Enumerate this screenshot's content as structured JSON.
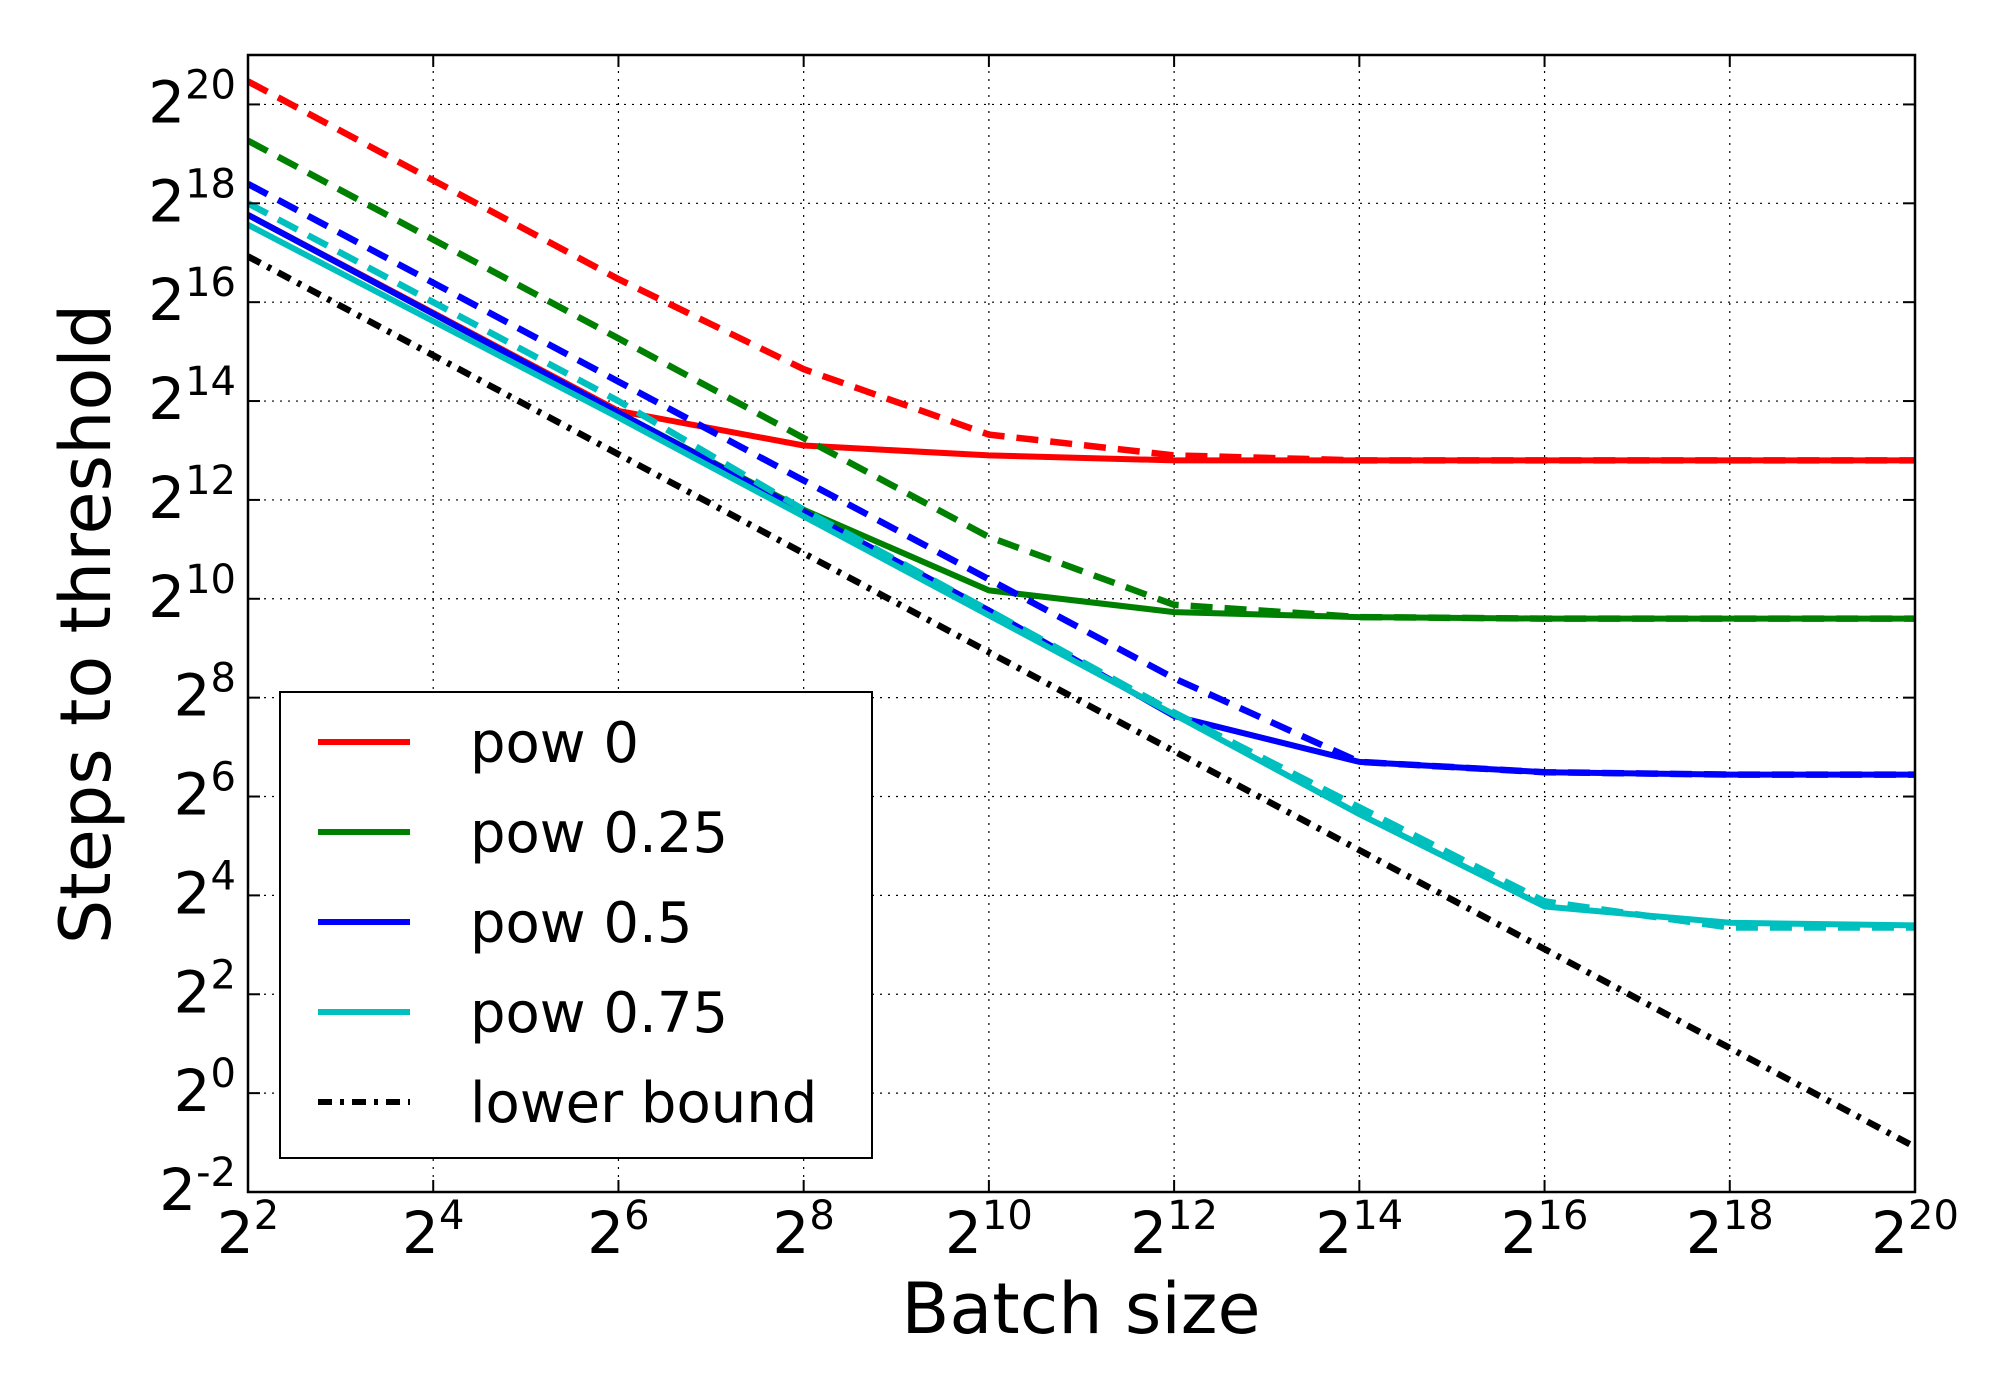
{
  "chart_data": {
    "type": "line",
    "xlabel": "Batch size",
    "ylabel": "Steps to threshold",
    "x_scale": "log2",
    "y_scale": "log2",
    "xlim": [
      4,
      1048576
    ],
    "ylim": [
      0.25,
      2097152
    ],
    "x_ticks": [
      {
        "base": "2",
        "exp": "2",
        "value": 4
      },
      {
        "base": "2",
        "exp": "4",
        "value": 16
      },
      {
        "base": "2",
        "exp": "6",
        "value": 64
      },
      {
        "base": "2",
        "exp": "8",
        "value": 256
      },
      {
        "base": "2",
        "exp": "10",
        "value": 1024
      },
      {
        "base": "2",
        "exp": "12",
        "value": 4096
      },
      {
        "base": "2",
        "exp": "14",
        "value": 16384
      },
      {
        "base": "2",
        "exp": "16",
        "value": 65536
      },
      {
        "base": "2",
        "exp": "18",
        "value": 262144
      },
      {
        "base": "2",
        "exp": "20",
        "value": 1048576
      }
    ],
    "y_ticks": [
      {
        "base": "2",
        "exp": "-2",
        "value": 0.25
      },
      {
        "base": "2",
        "exp": "0",
        "value": 1
      },
      {
        "base": "2",
        "exp": "2",
        "value": 4
      },
      {
        "base": "2",
        "exp": "4",
        "value": 16
      },
      {
        "base": "2",
        "exp": "6",
        "value": 64
      },
      {
        "base": "2",
        "exp": "8",
        "value": 256
      },
      {
        "base": "2",
        "exp": "10",
        "value": 1024
      },
      {
        "base": "2",
        "exp": "12",
        "value": 4096
      },
      {
        "base": "2",
        "exp": "14",
        "value": 16384
      },
      {
        "base": "2",
        "exp": "16",
        "value": 65536
      },
      {
        "base": "2",
        "exp": "18",
        "value": 262144
      },
      {
        "base": "2",
        "exp": "20",
        "value": 1048576
      }
    ],
    "grid": true,
    "legend_position": "bottom-left",
    "legend": [
      {
        "label": "pow 0",
        "color": "#ff0000",
        "style": "solid"
      },
      {
        "label": "pow 0.25",
        "color": "#008000",
        "style": "solid"
      },
      {
        "label": "pow 0.5",
        "color": "#0000ff",
        "style": "solid"
      },
      {
        "label": "pow 0.75",
        "color": "#00bfbf",
        "style": "solid"
      },
      {
        "label": "lower bound",
        "color": "#000000",
        "style": "dashdot"
      }
    ],
    "series": [
      {
        "key": "pow0-solid",
        "color": "#ff0000",
        "style": "solid",
        "x": [
          4,
          64,
          256,
          1024,
          4096,
          16384,
          65536,
          262144,
          1048576
        ],
        "y": [
          222861,
          14263,
          8780,
          7643,
          7131,
          7131,
          7131,
          7131,
          7131
        ]
      },
      {
        "key": "pow0-dashed",
        "color": "#ff0000",
        "style": "dashed",
        "x": [
          4,
          64,
          256,
          1024,
          4096,
          16384,
          65536,
          262144,
          1048576
        ],
        "y": [
          1448155,
          90510,
          25600,
          10240,
          7643,
          7131,
          7131,
          7131,
          7131
        ]
      },
      {
        "key": "pow025-solid",
        "color": "#008000",
        "style": "solid",
        "x": [
          4,
          64,
          256,
          1024,
          4096,
          16384,
          65536,
          262144,
          1048576
        ],
        "y": [
          222861,
          13926,
          3565,
          1152,
          849,
          792,
          776,
          776,
          776
        ]
      },
      {
        "key": "pow025-dashed",
        "color": "#008000",
        "style": "dashed",
        "x": [
          4,
          64,
          256,
          1024,
          4096,
          16384,
          65536,
          262144,
          1048576
        ],
        "y": [
          630602,
          39410,
          9742,
          2435,
          941,
          792,
          776,
          776,
          776
        ]
      },
      {
        "key": "pow05-solid",
        "color": "#0000ff",
        "style": "solid",
        "x": [
          4,
          64,
          256,
          1024,
          4096,
          16384,
          65536,
          262144,
          1048576
        ],
        "y": [
          222861,
          13926,
          3481,
          870,
          198,
          104,
          90,
          87,
          87
        ]
      },
      {
        "key": "pow05-dashed",
        "color": "#0000ff",
        "style": "dashed",
        "x": [
          4,
          64,
          256,
          1024,
          4096,
          16384,
          65536,
          262144,
          1048576
        ],
        "y": [
          344308,
          21521,
          5381,
          1345,
          336,
          104,
          90,
          87,
          87
        ]
      },
      {
        "key": "pow075-solid",
        "color": "#00bfbf",
        "style": "solid",
        "x": [
          4,
          64,
          256,
          1024,
          4096,
          16384,
          65536,
          262144,
          1048576
        ],
        "y": [
          194012,
          13004,
          3251,
          812,
          202,
          50,
          13.7,
          10.9,
          10.5
        ]
      },
      {
        "key": "pow075-dashed",
        "color": "#00bfbf",
        "style": "dashed",
        "x": [
          4,
          64,
          256,
          1024,
          4096,
          16384,
          65536,
          262144,
          1048576
        ],
        "y": [
          262144,
          16384,
          3565,
          870,
          208,
          55,
          14.7,
          10.2,
          10.2
        ]
      },
      {
        "key": "lower-bound",
        "color": "#000000",
        "style": "dashdot",
        "x": [
          4,
          1048576
        ],
        "y": [
          124548,
          0.47
        ]
      }
    ]
  }
}
